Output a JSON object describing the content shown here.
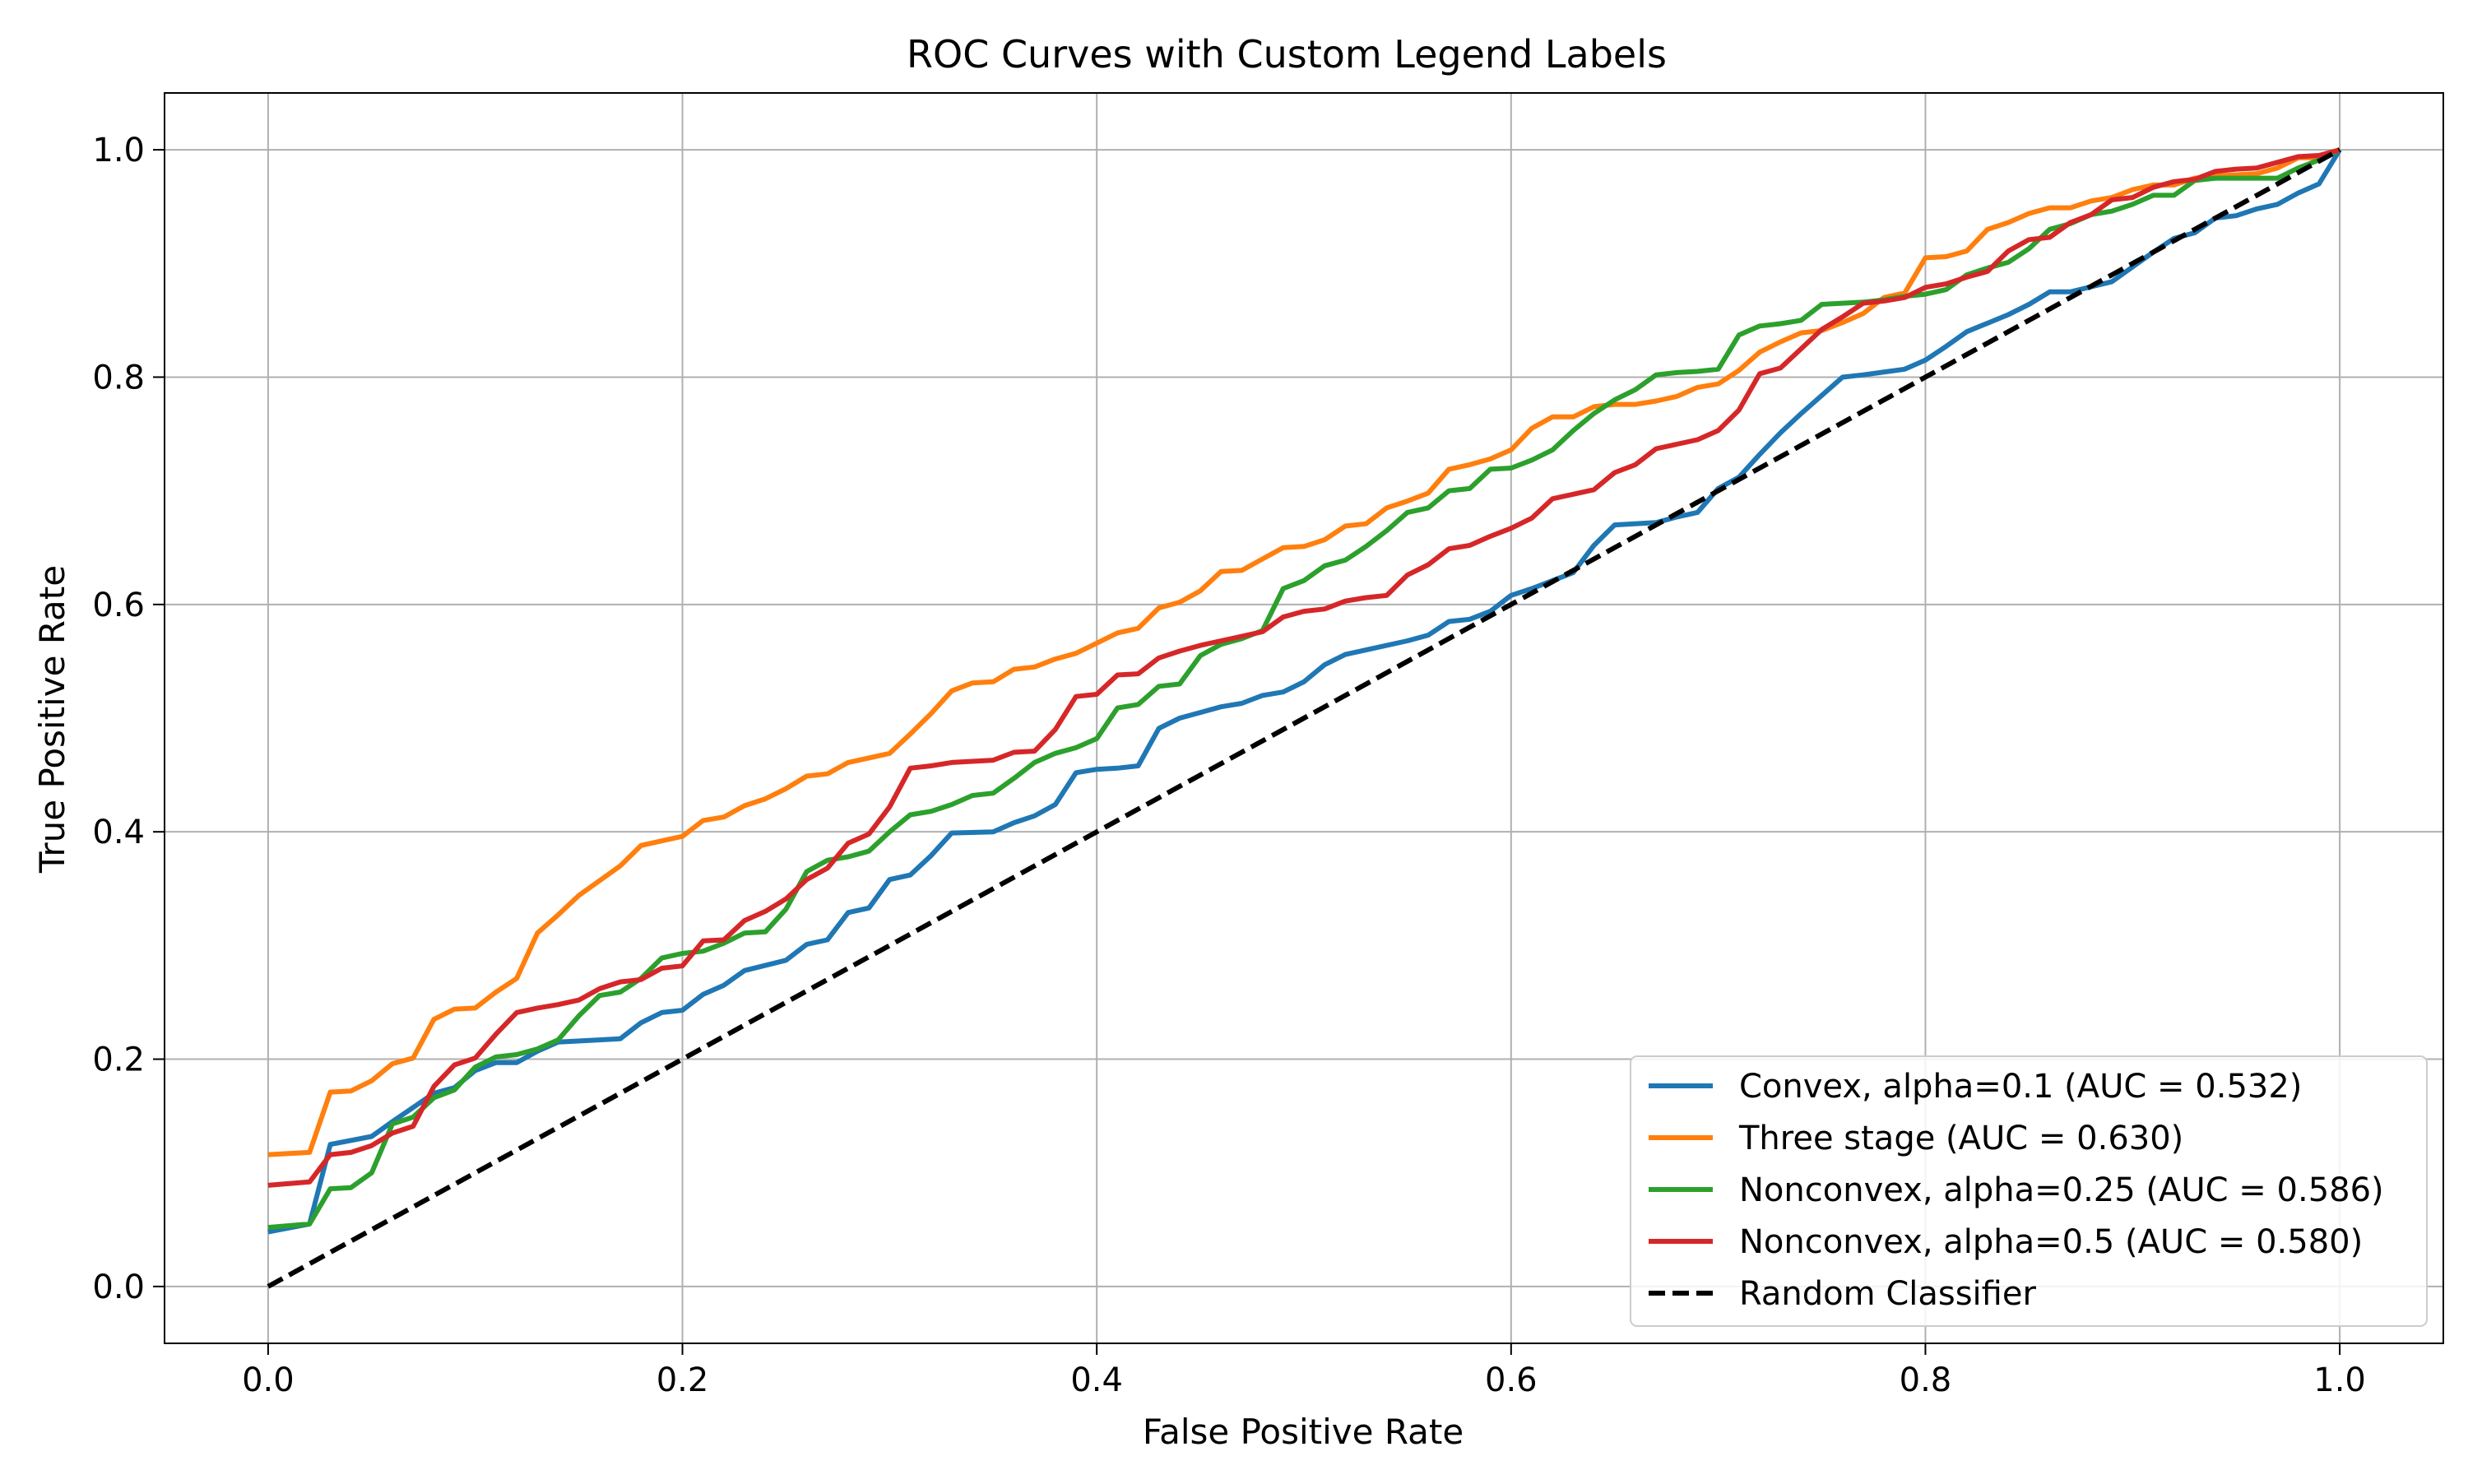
{
  "chart_data": {
    "type": "line",
    "title": "ROC Curves with Custom Legend Labels",
    "xlabel": "False Positive Rate",
    "ylabel": "True Positive Rate",
    "xlim": [
      -0.05,
      1.05
    ],
    "ylim": [
      -0.05,
      1.05
    ],
    "xticks": [
      {
        "value": 0.0,
        "label": "0.0"
      },
      {
        "value": 0.2,
        "label": "0.2"
      },
      {
        "value": 0.4,
        "label": "0.4"
      },
      {
        "value": 0.6,
        "label": "0.6"
      },
      {
        "value": 0.8,
        "label": "0.8"
      },
      {
        "value": 1.0,
        "label": "1.0"
      }
    ],
    "yticks": [
      {
        "value": 0.0,
        "label": "0.0"
      },
      {
        "value": 0.2,
        "label": "0.2"
      },
      {
        "value": 0.4,
        "label": "0.4"
      },
      {
        "value": 0.6,
        "label": "0.6"
      },
      {
        "value": 0.8,
        "label": "0.8"
      },
      {
        "value": 1.0,
        "label": "1.0"
      }
    ],
    "grid": true,
    "legend_position": "bottom-right",
    "series": [
      {
        "name": "Convex, alpha=0.1 (AUC = 0.532)",
        "color": "#1f77b4",
        "dash": "solid",
        "x": [
          0.0,
          0.02,
          0.03,
          0.05,
          0.06,
          0.08,
          0.09,
          0.1,
          0.11,
          0.12,
          0.13,
          0.14,
          0.16,
          0.17,
          0.18,
          0.19,
          0.2,
          0.21,
          0.22,
          0.23,
          0.25,
          0.26,
          0.27,
          0.28,
          0.29,
          0.3,
          0.31,
          0.32,
          0.33,
          0.35,
          0.36,
          0.37,
          0.38,
          0.39,
          0.4,
          0.41,
          0.42,
          0.43,
          0.44,
          0.45,
          0.46,
          0.47,
          0.48,
          0.49,
          0.5,
          0.51,
          0.52,
          0.53,
          0.55,
          0.56,
          0.57,
          0.58,
          0.59,
          0.6,
          0.61,
          0.62,
          0.63,
          0.64,
          0.65,
          0.67,
          0.68,
          0.69,
          0.7,
          0.71,
          0.72,
          0.73,
          0.74,
          0.76,
          0.77,
          0.79,
          0.8,
          0.81,
          0.82,
          0.84,
          0.85,
          0.86,
          0.87,
          0.89,
          0.9,
          0.91,
          0.92,
          0.93,
          0.94,
          0.95,
          0.96,
          0.97,
          0.98,
          0.99,
          1.0
        ],
        "y": [
          0.048,
          0.055,
          0.125,
          0.132,
          0.145,
          0.17,
          0.175,
          0.19,
          0.197,
          0.197,
          0.207,
          0.215,
          0.217,
          0.218,
          0.232,
          0.241,
          0.243,
          0.257,
          0.265,
          0.278,
          0.287,
          0.301,
          0.305,
          0.329,
          0.333,
          0.358,
          0.362,
          0.379,
          0.399,
          0.4,
          0.408,
          0.414,
          0.424,
          0.452,
          0.455,
          0.456,
          0.458,
          0.491,
          0.5,
          0.505,
          0.51,
          0.513,
          0.52,
          0.523,
          0.532,
          0.547,
          0.556,
          0.56,
          0.568,
          0.573,
          0.585,
          0.587,
          0.594,
          0.608,
          0.614,
          0.621,
          0.628,
          0.652,
          0.67,
          0.672,
          0.677,
          0.681,
          0.702,
          0.712,
          0.732,
          0.751,
          0.768,
          0.8,
          0.802,
          0.807,
          0.815,
          0.827,
          0.84,
          0.855,
          0.864,
          0.875,
          0.875,
          0.884,
          0.897,
          0.91,
          0.922,
          0.927,
          0.94,
          0.942,
          0.948,
          0.952,
          0.962,
          0.97,
          1.0
        ]
      },
      {
        "name": "Three stage (AUC = 0.630)",
        "color": "#ff7f0e",
        "dash": "solid",
        "x": [
          0.0,
          0.02,
          0.03,
          0.04,
          0.05,
          0.06,
          0.07,
          0.08,
          0.09,
          0.1,
          0.11,
          0.12,
          0.13,
          0.14,
          0.15,
          0.16,
          0.17,
          0.18,
          0.19,
          0.2,
          0.21,
          0.22,
          0.23,
          0.24,
          0.25,
          0.26,
          0.27,
          0.28,
          0.29,
          0.3,
          0.31,
          0.32,
          0.33,
          0.34,
          0.35,
          0.36,
          0.37,
          0.38,
          0.39,
          0.4,
          0.41,
          0.42,
          0.43,
          0.44,
          0.45,
          0.46,
          0.47,
          0.48,
          0.49,
          0.5,
          0.51,
          0.52,
          0.53,
          0.54,
          0.55,
          0.56,
          0.57,
          0.58,
          0.59,
          0.6,
          0.61,
          0.62,
          0.63,
          0.64,
          0.65,
          0.66,
          0.67,
          0.68,
          0.69,
          0.7,
          0.71,
          0.72,
          0.73,
          0.74,
          0.75,
          0.76,
          0.77,
          0.78,
          0.79,
          0.8,
          0.81,
          0.82,
          0.83,
          0.84,
          0.85,
          0.86,
          0.87,
          0.88,
          0.89,
          0.9,
          0.91,
          0.92,
          0.93,
          0.94,
          0.95,
          0.96,
          0.97,
          0.98,
          0.99,
          1.0
        ],
        "y": [
          0.116,
          0.118,
          0.171,
          0.172,
          0.181,
          0.196,
          0.201,
          0.235,
          0.244,
          0.245,
          0.259,
          0.271,
          0.311,
          0.327,
          0.344,
          0.357,
          0.37,
          0.388,
          0.392,
          0.396,
          0.41,
          0.413,
          0.423,
          0.429,
          0.438,
          0.449,
          0.451,
          0.461,
          0.465,
          0.469,
          0.486,
          0.504,
          0.524,
          0.531,
          0.532,
          0.543,
          0.545,
          0.552,
          0.557,
          0.566,
          0.575,
          0.579,
          0.597,
          0.602,
          0.612,
          0.629,
          0.63,
          0.64,
          0.65,
          0.651,
          0.657,
          0.669,
          0.671,
          0.685,
          0.691,
          0.698,
          0.719,
          0.723,
          0.728,
          0.736,
          0.755,
          0.765,
          0.765,
          0.774,
          0.776,
          0.776,
          0.779,
          0.783,
          0.791,
          0.794,
          0.806,
          0.822,
          0.831,
          0.839,
          0.841,
          0.848,
          0.856,
          0.87,
          0.874,
          0.905,
          0.906,
          0.911,
          0.93,
          0.936,
          0.944,
          0.949,
          0.949,
          0.955,
          0.958,
          0.965,
          0.969,
          0.969,
          0.975,
          0.977,
          0.978,
          0.979,
          0.984,
          0.993,
          0.993,
          1.0
        ]
      },
      {
        "name": "Nonconvex, alpha=0.25 (AUC = 0.586)",
        "color": "#2ca02c",
        "dash": "solid",
        "x": [
          0.0,
          0.02,
          0.03,
          0.04,
          0.05,
          0.06,
          0.07,
          0.08,
          0.09,
          0.1,
          0.11,
          0.12,
          0.13,
          0.14,
          0.15,
          0.16,
          0.17,
          0.18,
          0.19,
          0.2,
          0.21,
          0.22,
          0.23,
          0.24,
          0.25,
          0.26,
          0.27,
          0.28,
          0.29,
          0.3,
          0.31,
          0.32,
          0.33,
          0.34,
          0.35,
          0.36,
          0.37,
          0.38,
          0.39,
          0.4,
          0.41,
          0.42,
          0.43,
          0.44,
          0.45,
          0.46,
          0.47,
          0.48,
          0.49,
          0.5,
          0.51,
          0.52,
          0.53,
          0.54,
          0.55,
          0.56,
          0.57,
          0.58,
          0.59,
          0.6,
          0.61,
          0.62,
          0.63,
          0.64,
          0.65,
          0.66,
          0.67,
          0.68,
          0.69,
          0.7,
          0.71,
          0.72,
          0.73,
          0.74,
          0.75,
          0.76,
          0.77,
          0.78,
          0.79,
          0.8,
          0.81,
          0.82,
          0.83,
          0.84,
          0.85,
          0.86,
          0.87,
          0.88,
          0.89,
          0.9,
          0.91,
          0.92,
          0.93,
          0.94,
          0.95,
          0.96,
          0.97,
          0.98,
          0.99,
          1.0
        ],
        "y": [
          0.052,
          0.055,
          0.086,
          0.087,
          0.1,
          0.143,
          0.149,
          0.166,
          0.173,
          0.193,
          0.202,
          0.204,
          0.209,
          0.217,
          0.238,
          0.256,
          0.259,
          0.271,
          0.289,
          0.293,
          0.295,
          0.302,
          0.311,
          0.312,
          0.332,
          0.365,
          0.375,
          0.378,
          0.383,
          0.4,
          0.415,
          0.418,
          0.424,
          0.432,
          0.434,
          0.447,
          0.461,
          0.469,
          0.474,
          0.482,
          0.509,
          0.512,
          0.528,
          0.53,
          0.555,
          0.565,
          0.57,
          0.577,
          0.614,
          0.621,
          0.634,
          0.639,
          0.651,
          0.665,
          0.681,
          0.685,
          0.7,
          0.702,
          0.719,
          0.72,
          0.727,
          0.736,
          0.753,
          0.768,
          0.78,
          0.789,
          0.802,
          0.804,
          0.805,
          0.807,
          0.837,
          0.845,
          0.847,
          0.85,
          0.864,
          0.865,
          0.866,
          0.868,
          0.871,
          0.873,
          0.877,
          0.89,
          0.896,
          0.901,
          0.913,
          0.93,
          0.935,
          0.943,
          0.946,
          0.952,
          0.96,
          0.96,
          0.973,
          0.975,
          0.975,
          0.975,
          0.975,
          0.984,
          0.991,
          1.0
        ]
      },
      {
        "name": "Nonconvex, alpha=0.5 (AUC = 0.580)",
        "color": "#d62728",
        "dash": "solid",
        "x": [
          0.0,
          0.02,
          0.03,
          0.04,
          0.05,
          0.06,
          0.07,
          0.08,
          0.09,
          0.1,
          0.11,
          0.12,
          0.13,
          0.14,
          0.15,
          0.16,
          0.17,
          0.18,
          0.19,
          0.2,
          0.21,
          0.22,
          0.23,
          0.24,
          0.25,
          0.26,
          0.27,
          0.28,
          0.29,
          0.3,
          0.31,
          0.32,
          0.33,
          0.34,
          0.35,
          0.36,
          0.37,
          0.38,
          0.39,
          0.4,
          0.41,
          0.42,
          0.43,
          0.44,
          0.45,
          0.46,
          0.47,
          0.48,
          0.49,
          0.5,
          0.51,
          0.52,
          0.53,
          0.54,
          0.55,
          0.56,
          0.57,
          0.58,
          0.59,
          0.6,
          0.61,
          0.62,
          0.63,
          0.64,
          0.65,
          0.66,
          0.67,
          0.68,
          0.69,
          0.7,
          0.71,
          0.72,
          0.73,
          0.74,
          0.75,
          0.76,
          0.77,
          0.78,
          0.79,
          0.8,
          0.81,
          0.82,
          0.83,
          0.84,
          0.85,
          0.86,
          0.87,
          0.88,
          0.89,
          0.9,
          0.91,
          0.92,
          0.93,
          0.94,
          0.95,
          0.96,
          0.97,
          0.98,
          0.99,
          1.0
        ],
        "y": [
          0.089,
          0.092,
          0.116,
          0.118,
          0.124,
          0.135,
          0.141,
          0.176,
          0.195,
          0.201,
          0.222,
          0.241,
          0.245,
          0.248,
          0.252,
          0.262,
          0.268,
          0.27,
          0.28,
          0.282,
          0.304,
          0.305,
          0.322,
          0.33,
          0.341,
          0.358,
          0.368,
          0.39,
          0.398,
          0.422,
          0.456,
          0.458,
          0.461,
          0.462,
          0.463,
          0.47,
          0.471,
          0.49,
          0.519,
          0.521,
          0.538,
          0.539,
          0.553,
          0.559,
          0.564,
          0.568,
          0.572,
          0.576,
          0.589,
          0.594,
          0.596,
          0.603,
          0.606,
          0.608,
          0.626,
          0.635,
          0.649,
          0.652,
          0.66,
          0.667,
          0.676,
          0.693,
          0.697,
          0.701,
          0.716,
          0.723,
          0.737,
          0.741,
          0.745,
          0.753,
          0.771,
          0.803,
          0.808,
          0.825,
          0.842,
          0.853,
          0.865,
          0.867,
          0.87,
          0.879,
          0.882,
          0.888,
          0.893,
          0.911,
          0.921,
          0.923,
          0.936,
          0.943,
          0.956,
          0.958,
          0.967,
          0.972,
          0.974,
          0.981,
          0.983,
          0.984,
          0.989,
          0.994,
          0.995,
          1.0
        ]
      },
      {
        "name": "Random Classifier",
        "color": "#000000",
        "dash": "dashed",
        "x": [
          0.0,
          1.0
        ],
        "y": [
          0.0,
          1.0
        ]
      }
    ]
  }
}
